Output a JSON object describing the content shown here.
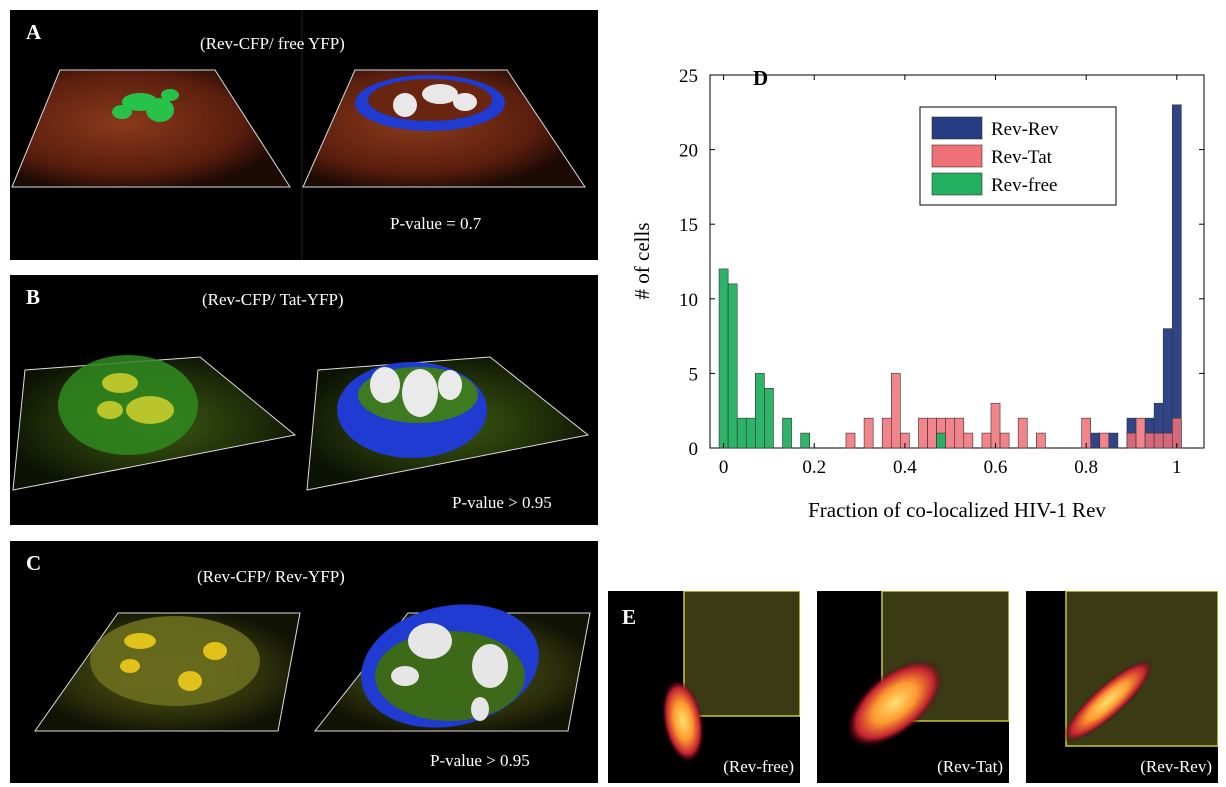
{
  "panel_a": {
    "letter": "A",
    "caption": "(Rev-CFP/ free YFP)",
    "pvalue": "P-value = 0.7"
  },
  "panel_b": {
    "letter": "B",
    "caption": "(Rev-CFP/ Tat-YFP)",
    "pvalue": "P-value > 0.95"
  },
  "panel_c": {
    "letter": "C",
    "caption": "(Rev-CFP/ Rev-YFP)",
    "pvalue": "P-value > 0.95"
  },
  "panel_e": {
    "letter": "E",
    "labels": [
      "(Rev-free)",
      "(Rev-Tat)",
      "(Rev-Rev)"
    ]
  },
  "chart_data": {
    "type": "bar",
    "title": "D",
    "xlabel": "Fraction of co-localized HIV-1 Rev",
    "ylabel": "# of cells",
    "xlim": [
      -0.03,
      1.06
    ],
    "ylim": [
      0,
      25
    ],
    "xticks": [
      0,
      0.2,
      0.4,
      0.6,
      0.8,
      1
    ],
    "xtick_labels": [
      "0",
      "0.2",
      "0.4",
      "0.6",
      "0.8",
      "1"
    ],
    "yticks": [
      0,
      5,
      10,
      15,
      20,
      25
    ],
    "ytick_labels": [
      "0",
      "5",
      "10",
      "15",
      "20",
      "25"
    ],
    "bin_width": 0.02,
    "legend_position": "top-right",
    "series": [
      {
        "name": "Rev-Rev",
        "color": "#253b82",
        "x": [
          0.82,
          0.86,
          0.9,
          0.94,
          0.96,
          0.98,
          1.0
        ],
        "values": [
          1,
          1,
          2,
          2,
          3,
          8,
          23
        ]
      },
      {
        "name": "Rev-Tat",
        "color": "#f07078",
        "x": [
          0.28,
          0.32,
          0.36,
          0.38,
          0.4,
          0.44,
          0.46,
          0.48,
          0.5,
          0.52,
          0.54,
          0.58,
          0.6,
          0.62,
          0.66,
          0.7,
          0.8,
          0.84,
          0.9,
          0.92,
          0.94,
          0.96,
          0.98,
          1.0
        ],
        "values": [
          1,
          2,
          2,
          5,
          1,
          2,
          2,
          2,
          2,
          2,
          1,
          1,
          3,
          1,
          2,
          1,
          2,
          1,
          1,
          2,
          1,
          1,
          1,
          2
        ]
      },
      {
        "name": "Rev-free",
        "color": "#22b060",
        "x": [
          0.0,
          0.02,
          0.04,
          0.06,
          0.08,
          0.1,
          0.14,
          0.18,
          0.48
        ],
        "values": [
          12,
          11,
          2,
          2,
          5,
          4,
          2,
          1,
          1
        ]
      }
    ]
  }
}
